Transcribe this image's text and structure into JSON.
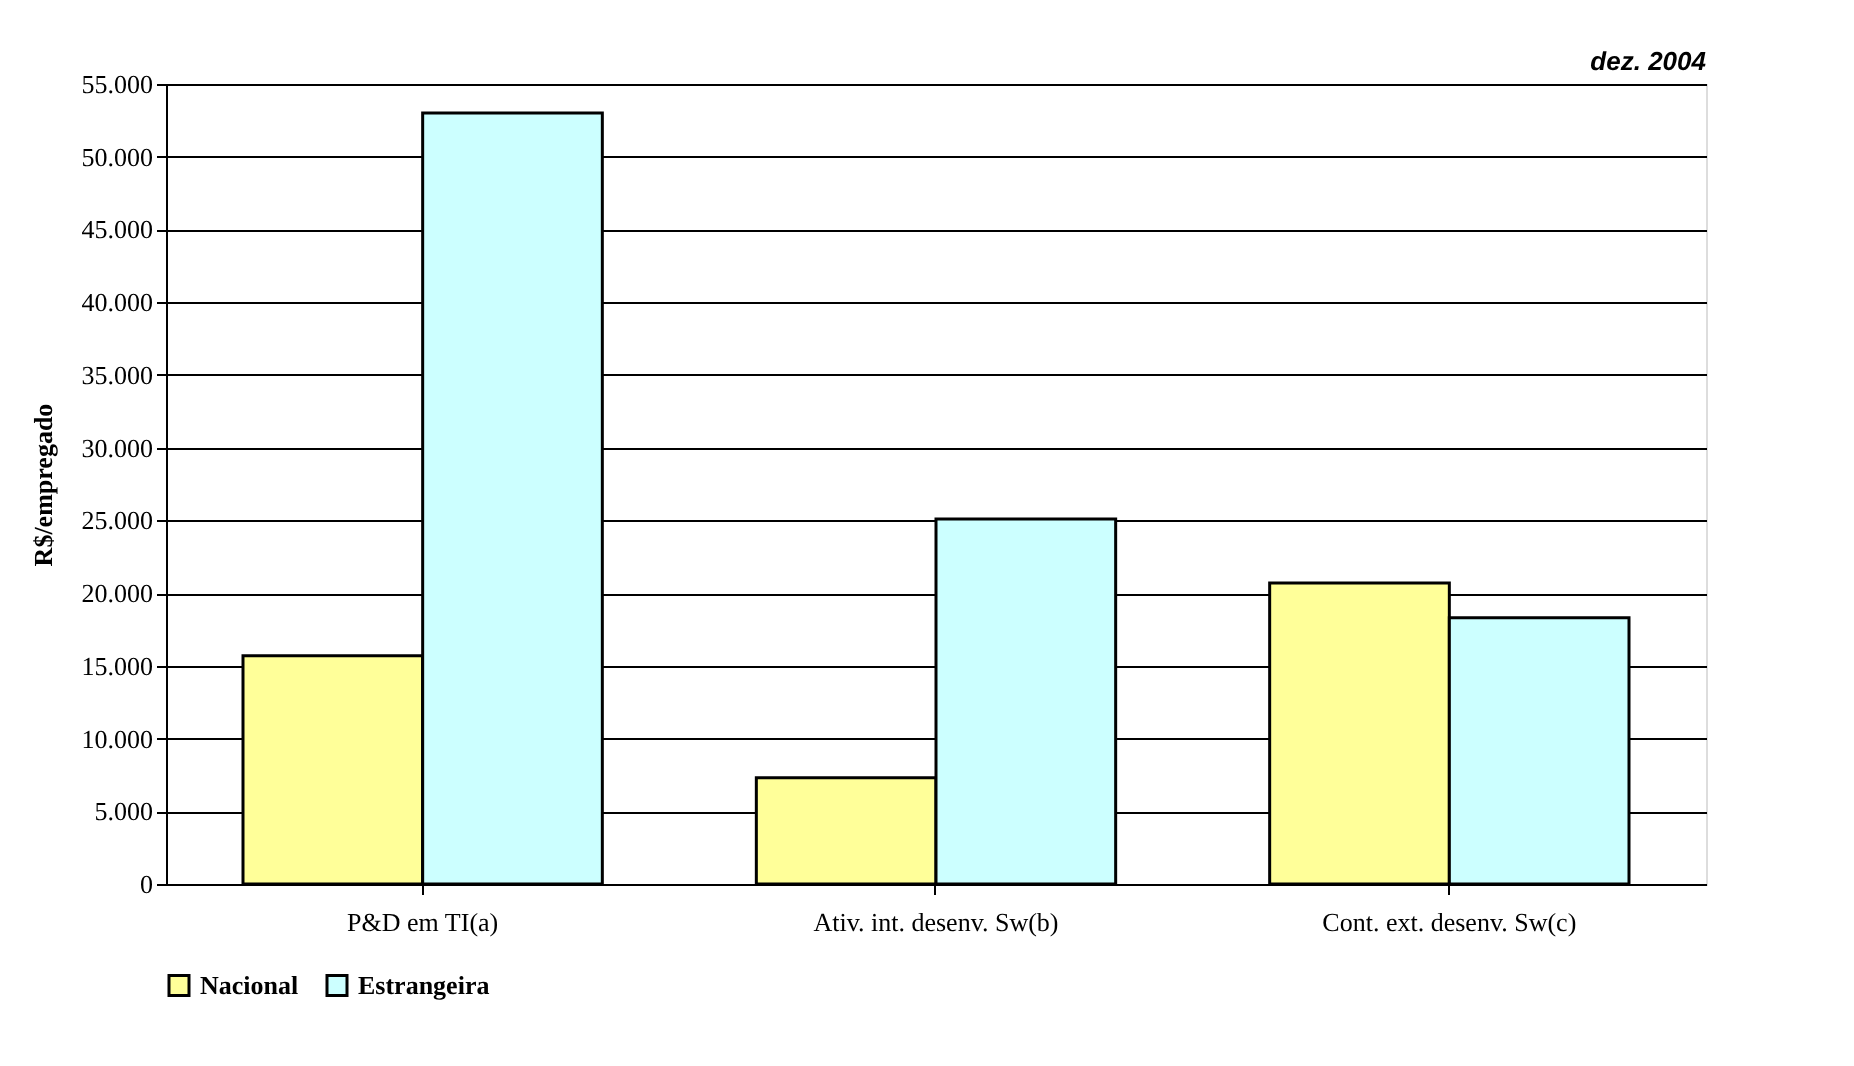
{
  "chart_data": {
    "type": "bar",
    "ylabel": "R$/empregado",
    "annotations": [
      "dez. 2004"
    ],
    "categories": [
      "P&D em TI(a)",
      "Ativ. int. desenv. Sw(b)",
      "Cont. ext. desenv. Sw(c)"
    ],
    "series": [
      {
        "name": "Nacional",
        "color": "#ffff99",
        "values": [
          15700,
          7300,
          20700
        ]
      },
      {
        "name": "Estrangeira",
        "color": "#ccffff",
        "values": [
          53000,
          25100,
          18300
        ]
      }
    ],
    "ylim": [
      0,
      55000
    ],
    "yticks": [
      0,
      {
        "value": 5000,
        "label": "5.000"
      },
      {
        "value": 10000,
        "label": "10.000"
      },
      {
        "value": 15000,
        "label": "15.000"
      },
      {
        "value": 20000,
        "label": "20.000"
      },
      {
        "value": 25000,
        "label": "25.000"
      },
      {
        "value": 30000,
        "label": "30.000"
      },
      {
        "value": 35000,
        "label": "35.000"
      },
      {
        "value": 40000,
        "label": "40.000"
      },
      {
        "value": 45000,
        "label": "45.000"
      },
      {
        "value": 50000,
        "label": "50.000"
      },
      {
        "value": 55000,
        "label": "55.000"
      }
    ],
    "grid": "y",
    "legend": "bottom"
  }
}
